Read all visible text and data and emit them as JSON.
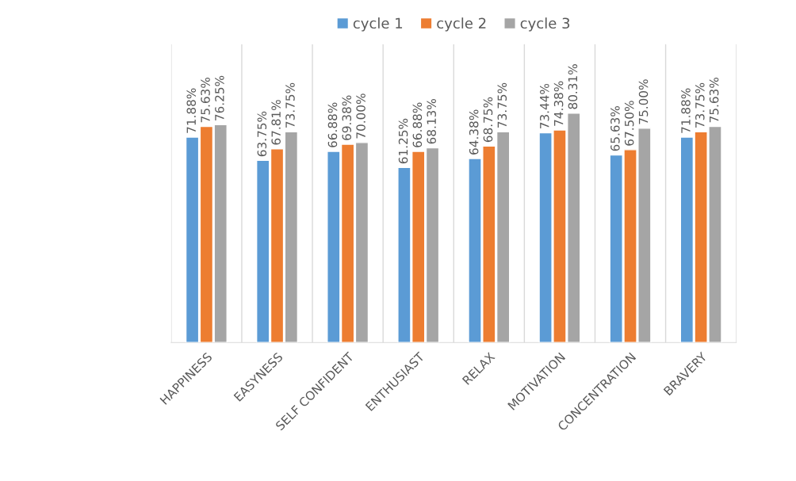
{
  "chart_data": {
    "type": "bar",
    "categories": [
      "HAPPINESS",
      "EASYNESS",
      "SELF CONFIDENT",
      "ENTHUSIAST",
      "RELAX",
      "MOTIVATION",
      "CONCENTRATION",
      "BRAVERY"
    ],
    "series": [
      {
        "name": "cycle 1",
        "color": "#5b9bd5",
        "values": [
          71.88,
          63.75,
          66.88,
          61.25,
          64.38,
          73.44,
          65.63,
          71.88
        ],
        "value_labels": [
          "71.88%",
          "63.75%",
          "66.88%",
          "61.25%",
          "64.38%",
          "73.44%",
          "65.63%",
          "71.88%"
        ]
      },
      {
        "name": "cycle 2",
        "color": "#ed7d31",
        "values": [
          75.63,
          67.81,
          69.38,
          66.88,
          68.75,
          74.38,
          67.5,
          73.75
        ],
        "value_labels": [
          "75.63%",
          "67.81%",
          "69.38%",
          "66.88%",
          "68.75%",
          "74.38%",
          "67.50%",
          "73.75%"
        ]
      },
      {
        "name": "cycle 3",
        "color": "#a5a5a5",
        "values": [
          76.25,
          73.75,
          70.0,
          68.13,
          73.75,
          80.31,
          75.0,
          75.63
        ],
        "value_labels": [
          "76.25%",
          "73.75%",
          "70.00%",
          "68.13%",
          "73.75%",
          "80.31%",
          "75.00%",
          "75.63%"
        ]
      }
    ],
    "grid": "x",
    "legend": "top",
    "tick_labels": "x"
  }
}
